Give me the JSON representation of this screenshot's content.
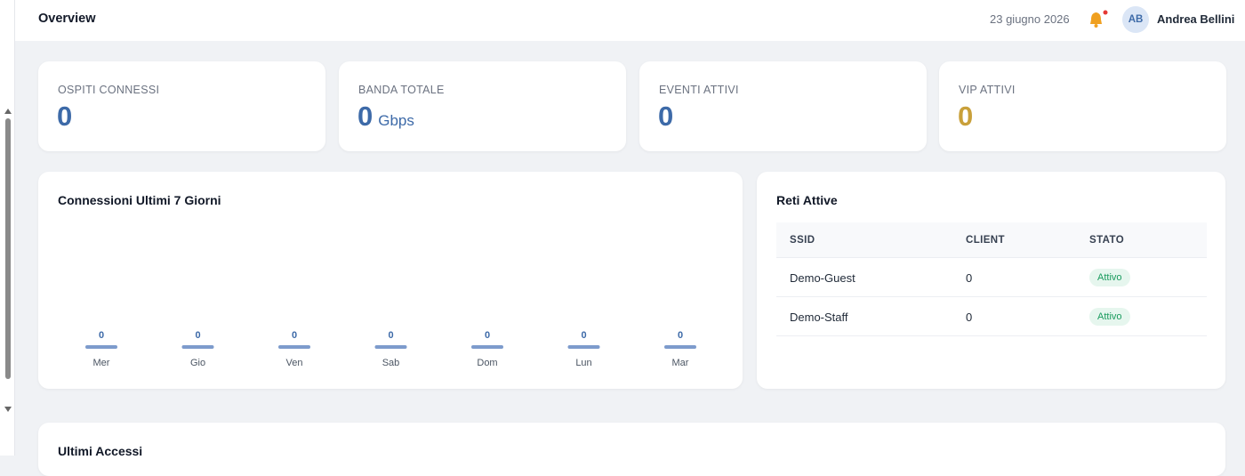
{
  "header": {
    "title": "Overview",
    "date": "23 giugno 2026",
    "user_initials": "AB",
    "user_name": "Andrea Bellini"
  },
  "stats": [
    {
      "label": "OSPITI CONNESSI",
      "value": 0
    },
    {
      "label": "BANDA TOTALE",
      "value": 0,
      "unit": "Gbps"
    },
    {
      "label": "EVENTI ATTIVI",
      "value": 0
    },
    {
      "label": "VIP ATTIVI",
      "value": 0
    }
  ],
  "connections_chart": {
    "title": "Connessioni Ultimi 7 Giorni",
    "categories": [
      "Mer",
      "Gio",
      "Ven",
      "Sab",
      "Dom",
      "Lun",
      "Mar"
    ],
    "values": [
      0,
      0,
      0,
      0,
      0,
      0,
      0
    ]
  },
  "networks": {
    "title": "Reti Attive",
    "columns": [
      "SSID",
      "CLIENT",
      "STATO"
    ],
    "rows": [
      [
        "Demo-Guest",
        0,
        "Attivo"
      ],
      [
        "Demo-Staff",
        0,
        "Attivo"
      ]
    ]
  },
  "recent_access": {
    "title": "Ultimi Accessi"
  }
}
